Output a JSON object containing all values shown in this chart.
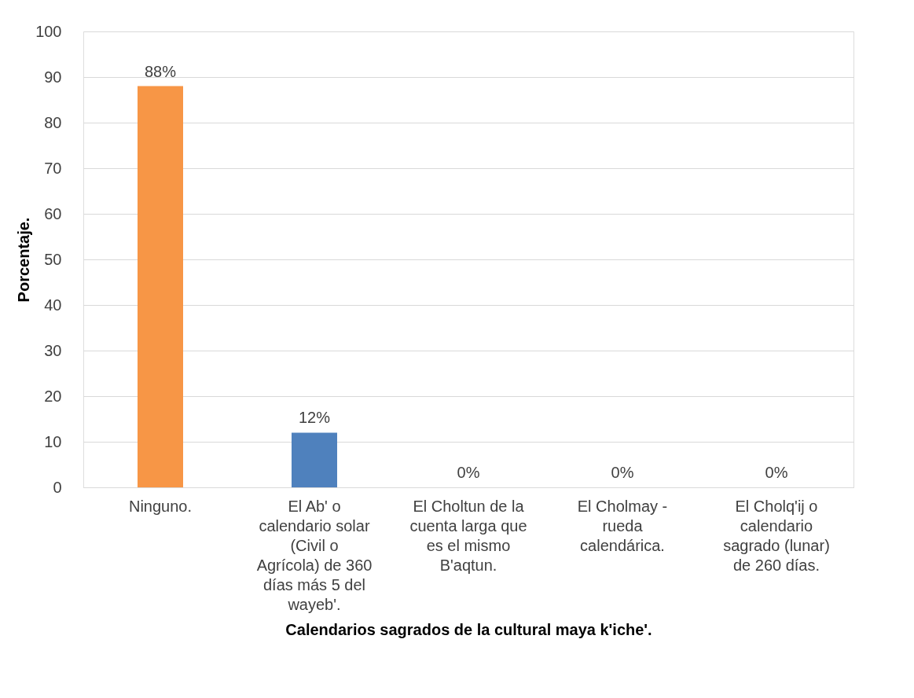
{
  "chart_data": {
    "type": "bar",
    "categories": [
      "Ninguno.",
      "El Ab' o calendario solar (Civil o Agrícola) de 360 días más 5 del wayeb'.",
      "El Choltun de la cuenta larga que es el mismo B'aqtun.",
      "El Cholmay - rueda calendárica.",
      "El Cholq'ij o calendario sagrado (lunar) de 260 días."
    ],
    "values": [
      88,
      12,
      0,
      0,
      0
    ],
    "colors": [
      "#f79646",
      "#4f81bd",
      "#4f81bd",
      "#4f81bd",
      "#4f81bd"
    ],
    "value_labels": [
      "88%",
      "12%",
      "0%",
      "0%",
      "0%"
    ],
    "xlabel": "Calendarios sagrados de la cultural maya k'iche'.",
    "ylabel": "Porcentaje.",
    "ylim": [
      0,
      100
    ],
    "yticks": [
      0,
      10,
      20,
      30,
      40,
      50,
      60,
      70,
      80,
      90,
      100
    ],
    "grid": "y"
  }
}
